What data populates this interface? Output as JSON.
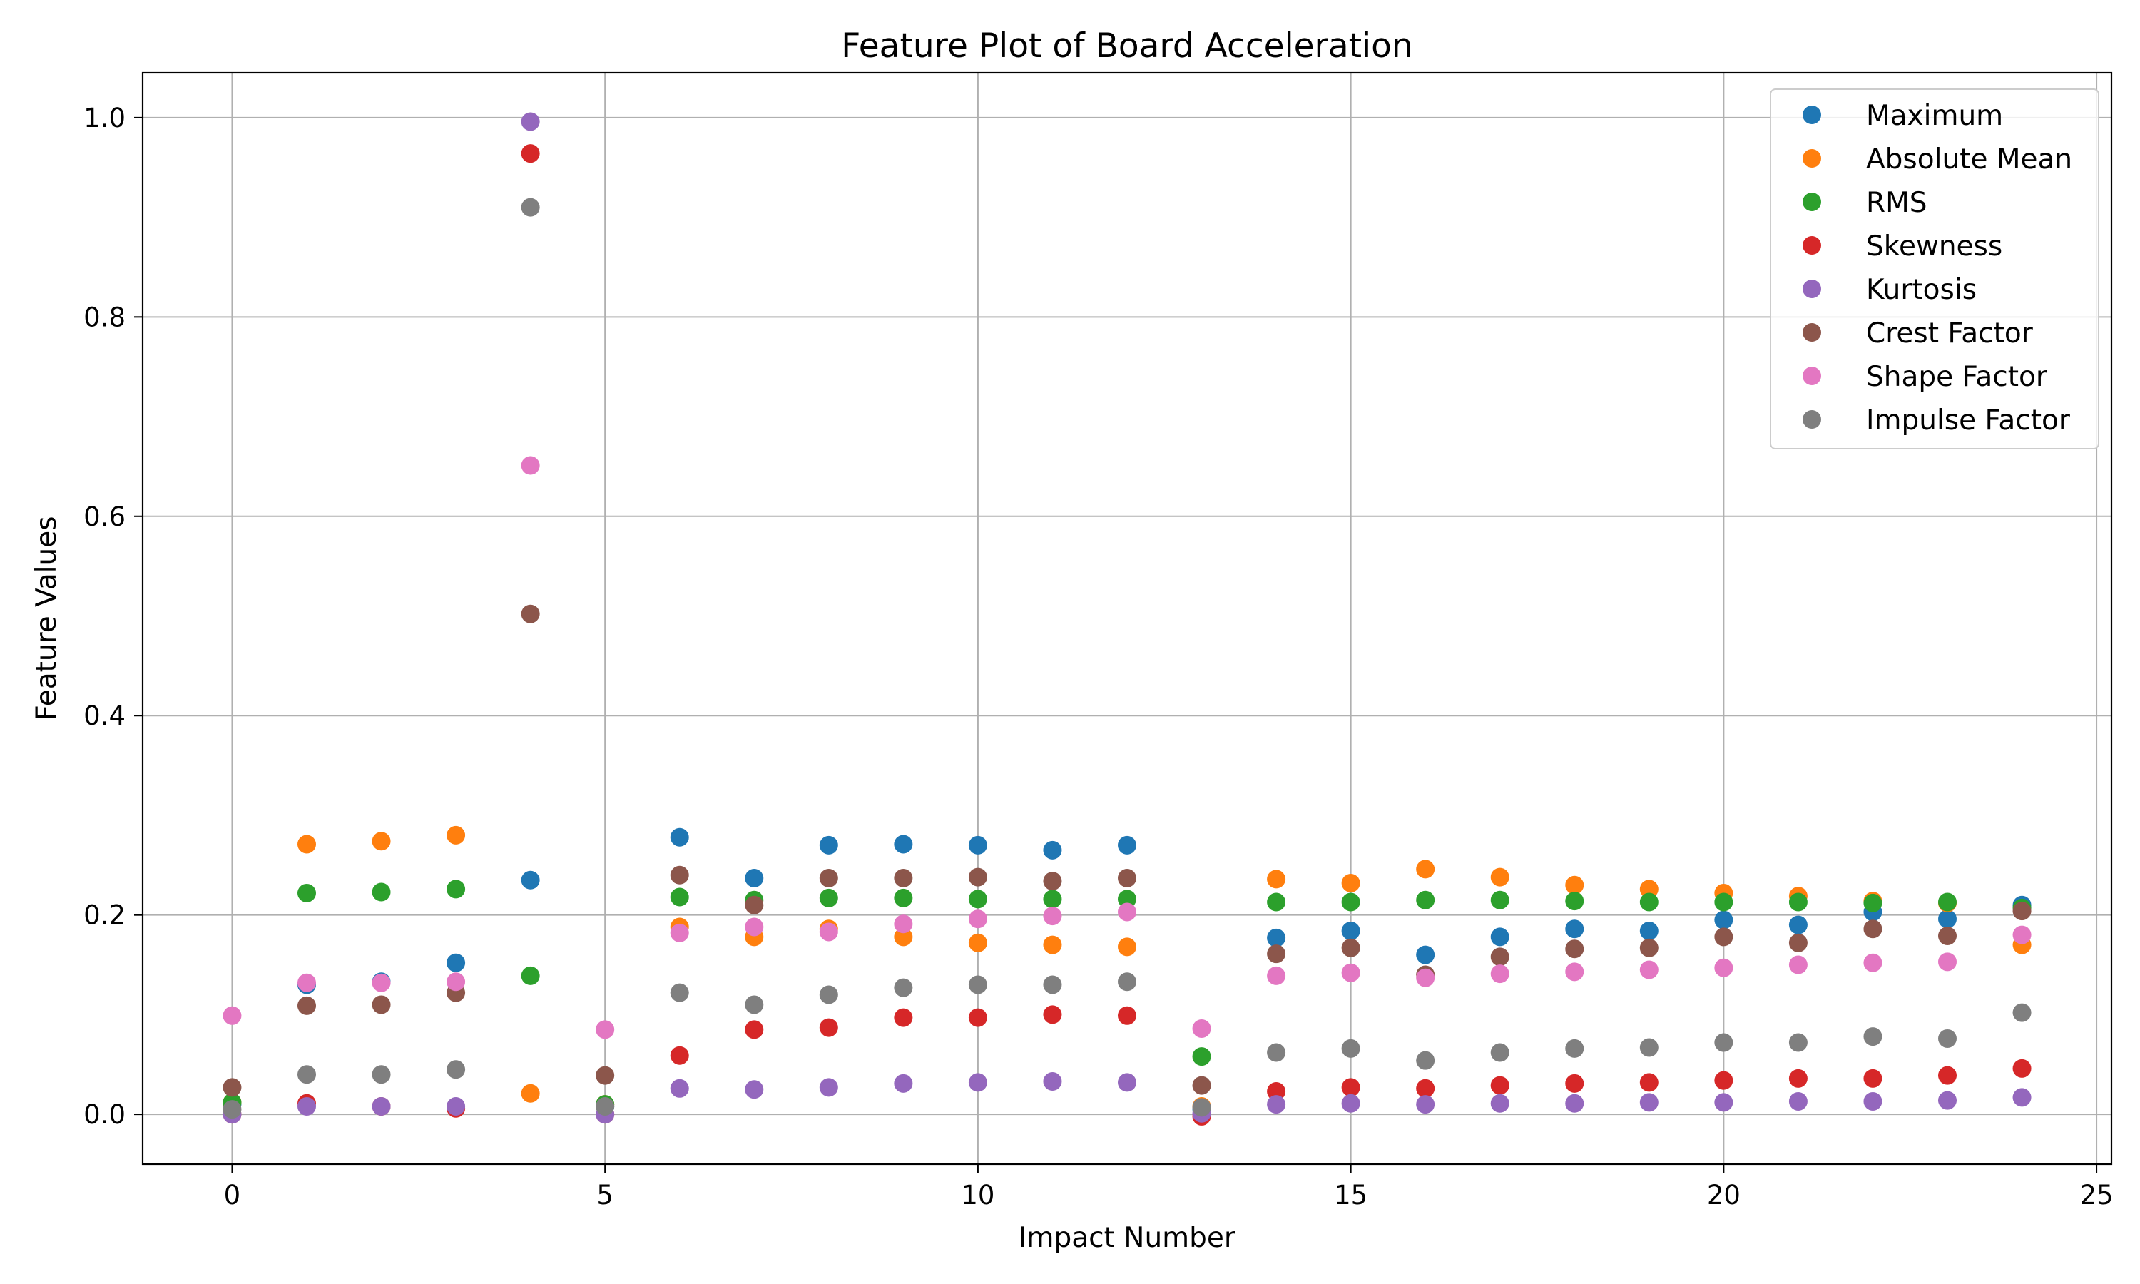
{
  "chart_data": {
    "type": "scatter",
    "title": "Feature Plot of Board Acceleration",
    "xlabel": "Impact Number",
    "ylabel": "Feature Values",
    "xlim": [
      -1.2,
      25.2
    ],
    "ylim": [
      -0.05,
      1.045
    ],
    "xticks": [
      0,
      5,
      10,
      15,
      20,
      25
    ],
    "xtick_labels": [
      "0",
      "5",
      "10",
      "15",
      "20",
      "25"
    ],
    "yticks": [
      0.0,
      0.2,
      0.4,
      0.6,
      0.8,
      1.0
    ],
    "ytick_labels": [
      "0.0",
      "0.2",
      "0.4",
      "0.6",
      "0.8",
      "1.0"
    ],
    "grid": true,
    "legend_position": "top-right",
    "x": [
      0,
      1,
      2,
      3,
      4,
      5,
      6,
      7,
      8,
      9,
      10,
      11,
      12,
      13,
      14,
      15,
      16,
      17,
      18,
      19,
      20,
      21,
      22,
      23,
      24
    ],
    "series": [
      {
        "name": "Maximum",
        "color": "#1f77b4",
        "values": [
          0.01,
          0.13,
          0.133,
          0.152,
          0.235,
          0.008,
          0.278,
          0.237,
          0.27,
          0.271,
          0.27,
          0.265,
          0.27,
          0.005,
          0.177,
          0.184,
          0.16,
          0.178,
          0.186,
          0.184,
          0.195,
          0.19,
          0.203,
          0.196,
          0.21
        ]
      },
      {
        "name": "Absolute Mean",
        "color": "#ff7f0e",
        "values": [
          0.012,
          0.271,
          0.274,
          0.28,
          0.021,
          0.01,
          0.188,
          0.178,
          0.186,
          0.178,
          0.172,
          0.17,
          0.168,
          0.008,
          0.236,
          0.232,
          0.246,
          0.238,
          0.23,
          0.226,
          0.222,
          0.219,
          0.214,
          0.212,
          0.17
        ]
      },
      {
        "name": "RMS",
        "color": "#2ca02c",
        "values": [
          0.012,
          0.222,
          0.223,
          0.226,
          0.139,
          0.01,
          0.218,
          0.215,
          0.217,
          0.217,
          0.216,
          0.216,
          0.216,
          0.058,
          0.213,
          0.213,
          0.215,
          0.215,
          0.214,
          0.213,
          0.213,
          0.213,
          0.212,
          0.213,
          0.207
        ]
      },
      {
        "name": "Skewness",
        "color": "#d62728",
        "values": [
          0.0,
          0.011,
          0.008,
          0.006,
          0.964,
          0.0,
          0.059,
          0.085,
          0.087,
          0.097,
          0.097,
          0.1,
          0.099,
          -0.002,
          0.023,
          0.027,
          0.026,
          0.029,
          0.031,
          0.032,
          0.034,
          0.036,
          0.036,
          0.039,
          0.046
        ]
      },
      {
        "name": "Kurtosis",
        "color": "#9467bd",
        "values": [
          0.0,
          0.008,
          0.008,
          0.008,
          0.996,
          0.0,
          0.026,
          0.025,
          0.027,
          0.031,
          0.032,
          0.033,
          0.032,
          0.001,
          0.01,
          0.011,
          0.01,
          0.011,
          0.011,
          0.012,
          0.012,
          0.013,
          0.013,
          0.014,
          0.017
        ]
      },
      {
        "name": "Crest Factor",
        "color": "#8c564b",
        "values": [
          0.027,
          0.109,
          0.11,
          0.122,
          0.502,
          0.039,
          0.24,
          0.21,
          0.237,
          0.237,
          0.238,
          0.234,
          0.237,
          0.029,
          0.161,
          0.167,
          0.14,
          0.158,
          0.166,
          0.167,
          0.178,
          0.172,
          0.186,
          0.179,
          0.204
        ]
      },
      {
        "name": "Shape Factor",
        "color": "#e377c2",
        "values": [
          0.099,
          0.132,
          0.132,
          0.133,
          0.651,
          0.085,
          0.182,
          0.188,
          0.183,
          0.191,
          0.196,
          0.199,
          0.203,
          0.086,
          0.139,
          0.142,
          0.137,
          0.141,
          0.143,
          0.145,
          0.147,
          0.15,
          0.152,
          0.153,
          0.18
        ]
      },
      {
        "name": "Impulse Factor",
        "color": "#7f7f7f",
        "values": [
          0.005,
          0.04,
          0.04,
          0.045,
          0.91,
          0.008,
          0.122,
          0.11,
          0.12,
          0.127,
          0.13,
          0.13,
          0.133,
          0.007,
          0.062,
          0.066,
          0.054,
          0.062,
          0.066,
          0.067,
          0.072,
          0.072,
          0.078,
          0.076,
          0.102
        ]
      }
    ]
  }
}
